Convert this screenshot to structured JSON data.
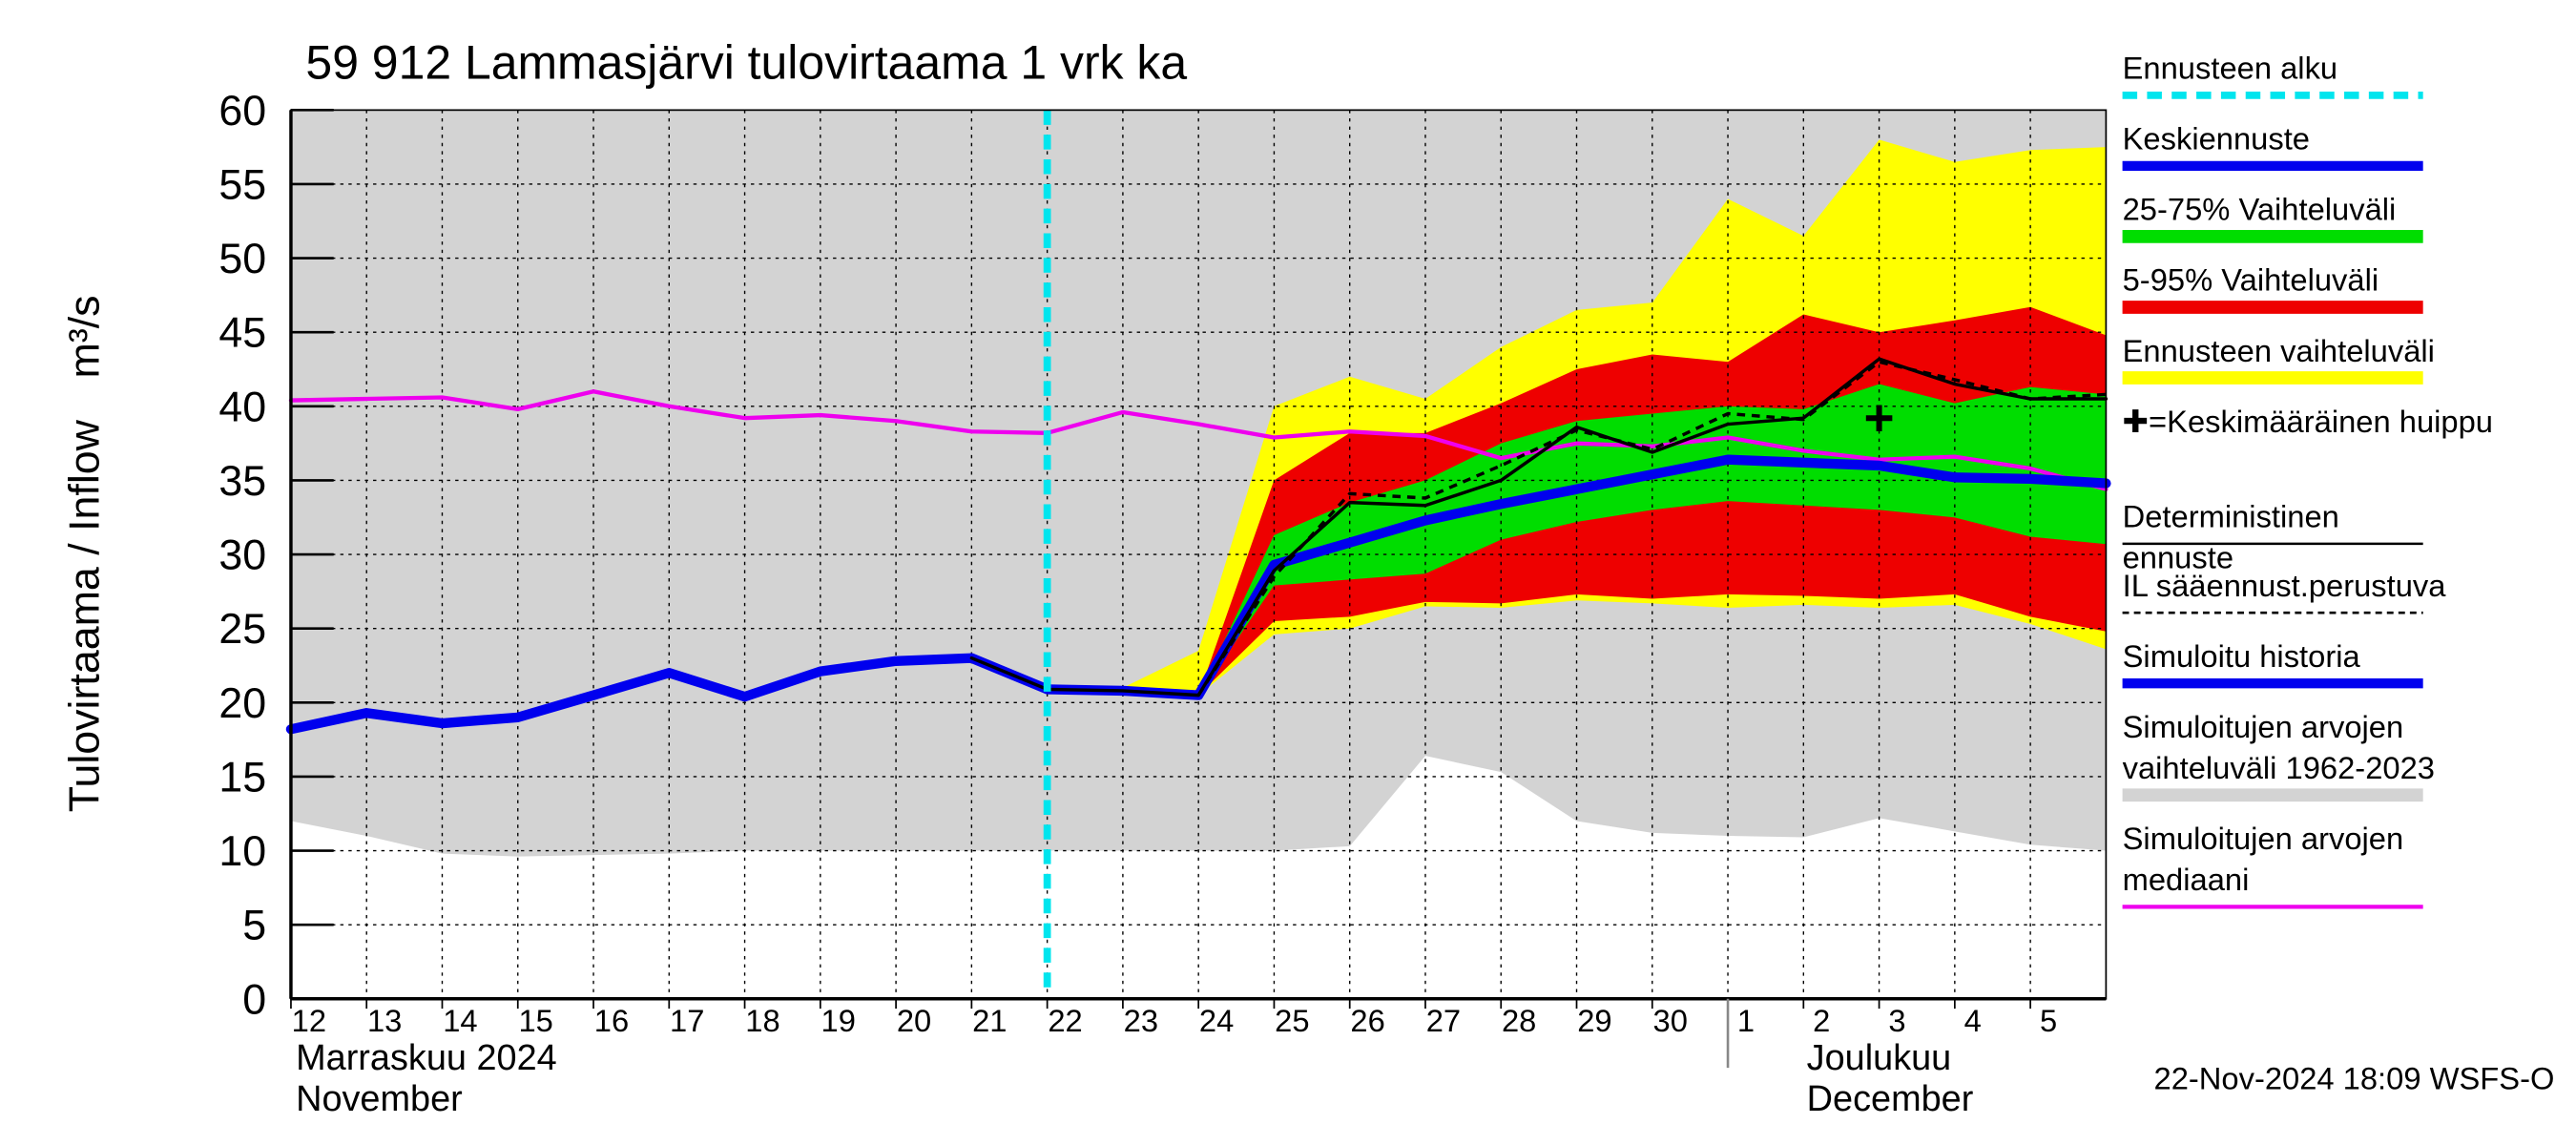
{
  "chart_data": {
    "type": "line",
    "title": "59 912 Lammasjärvi tulovirtaama 1 vrk ka",
    "y_label": "Tulovirtaama / Inflow",
    "y_unit": "m³/s",
    "x": [
      0,
      1,
      2,
      3,
      4,
      5,
      6,
      7,
      8,
      9,
      10,
      11,
      12,
      13,
      14,
      15,
      16,
      17,
      18,
      19,
      20,
      21,
      22,
      23,
      24
    ],
    "xlim": [
      0,
      24
    ],
    "xticks": [
      {
        "value": 0,
        "label": "12"
      },
      {
        "value": 1,
        "label": "13"
      },
      {
        "value": 2,
        "label": "14"
      },
      {
        "value": 3,
        "label": "15"
      },
      {
        "value": 4,
        "label": "16"
      },
      {
        "value": 5,
        "label": "17"
      },
      {
        "value": 6,
        "label": "18"
      },
      {
        "value": 7,
        "label": "19"
      },
      {
        "value": 8,
        "label": "20"
      },
      {
        "value": 9,
        "label": "21"
      },
      {
        "value": 10,
        "label": "22"
      },
      {
        "value": 11,
        "label": "23"
      },
      {
        "value": 12,
        "label": "24"
      },
      {
        "value": 13,
        "label": "25"
      },
      {
        "value": 14,
        "label": "26"
      },
      {
        "value": 15,
        "label": "27"
      },
      {
        "value": 16,
        "label": "28"
      },
      {
        "value": 17,
        "label": "29"
      },
      {
        "value": 18,
        "label": "30"
      },
      {
        "value": 19,
        "label": "1"
      },
      {
        "value": 20,
        "label": "2"
      },
      {
        "value": 21,
        "label": "3"
      },
      {
        "value": 22,
        "label": "4"
      },
      {
        "value": 23,
        "label": "5"
      }
    ],
    "ylim": [
      0,
      60
    ],
    "yticks": [
      0,
      5,
      10,
      15,
      20,
      25,
      30,
      35,
      40,
      45,
      50,
      55,
      60
    ],
    "grid": true,
    "months": [
      {
        "x": 0,
        "label": "Marraskuu 2024",
        "label_en": "November"
      },
      {
        "x": 19,
        "label": "Joulukuu",
        "label_en": "December"
      }
    ],
    "forecast_start": {
      "name": "Ennusteen alku",
      "x": 10,
      "color": "#00e5ee"
    },
    "peak": {
      "name": "=Keskimääräinen huippu",
      "x": 21,
      "y": 39.2,
      "color": "#000000"
    },
    "series": [
      {
        "name": "Keskiennuste",
        "color": "#0000ee",
        "style": "line",
        "width": 6,
        "values": [
          null,
          null,
          null,
          null,
          null,
          null,
          null,
          null,
          null,
          null,
          20.9,
          20.8,
          20.5,
          29.3,
          30.8,
          32.3,
          33.4,
          34.4,
          35.4,
          36.4,
          36.2,
          36,
          35.2,
          35.1,
          34.8
        ]
      },
      {
        "name": "25-75% Vaihteluväli",
        "color": "#00dd00",
        "style": "band",
        "upper": [
          null,
          null,
          null,
          null,
          null,
          null,
          null,
          null,
          null,
          null,
          21,
          20.8,
          20.5,
          31.3,
          33.5,
          35,
          37.5,
          39,
          39.5,
          40,
          39.8,
          41.5,
          40.2,
          41.3,
          40.8
        ],
        "lower": [
          null,
          null,
          null,
          null,
          null,
          null,
          null,
          null,
          null,
          null,
          21,
          20.8,
          20.5,
          27.9,
          28.3,
          28.7,
          31,
          32.2,
          33,
          33.6,
          33.3,
          33,
          32.5,
          31.2,
          30.7
        ]
      },
      {
        "name": "5-95% Vaihteluväli",
        "color": "#ee0000",
        "style": "band",
        "upper": [
          null,
          null,
          null,
          null,
          null,
          null,
          null,
          null,
          null,
          null,
          21,
          20.8,
          20.5,
          35,
          38.2,
          38.2,
          40.2,
          42.5,
          43.5,
          43,
          46.2,
          45,
          45.8,
          46.7,
          44.8
        ],
        "lower": [
          null,
          null,
          null,
          null,
          null,
          null,
          null,
          null,
          null,
          null,
          21,
          20.8,
          20.5,
          25.5,
          25.8,
          26.8,
          26.7,
          27.3,
          27,
          27.3,
          27.2,
          27,
          27.3,
          25.8,
          24.8
        ]
      },
      {
        "name": "Ennusteen vaihteluväli",
        "color": "#ffff00",
        "style": "band",
        "upper": [
          null,
          null,
          null,
          null,
          null,
          null,
          null,
          null,
          null,
          null,
          21,
          21,
          23.5,
          40,
          42,
          40.5,
          44,
          46.5,
          47,
          54,
          51.5,
          58,
          56.5,
          57.3,
          57.5
        ],
        "lower": [
          null,
          null,
          null,
          null,
          null,
          null,
          null,
          null,
          null,
          null,
          21,
          20.8,
          20.5,
          24.6,
          25,
          26.5,
          26.4,
          26.9,
          26.7,
          26.4,
          26.6,
          26.4,
          26.6,
          25.3,
          23.6
        ]
      },
      {
        "name": "Deterministinen ennuste",
        "color": "#000000",
        "style": "line",
        "width": 2,
        "values": [
          null,
          null,
          null,
          null,
          null,
          null,
          null,
          null,
          null,
          23,
          20.9,
          20.8,
          20.5,
          28.9,
          33.5,
          33.3,
          35,
          38.6,
          36.9,
          38.8,
          39.2,
          43.2,
          41.5,
          40.5,
          40.5
        ]
      },
      {
        "name": "IL sääennust.perustuva",
        "color": "#000000",
        "style": "dashed",
        "width": 2,
        "values": [
          null,
          null,
          null,
          null,
          null,
          null,
          null,
          null,
          null,
          null,
          null,
          null,
          20.5,
          28.5,
          34.1,
          33.8,
          36,
          38.4,
          37.1,
          39.5,
          39.1,
          43,
          41.8,
          40.5,
          40.8
        ]
      },
      {
        "name": "Simuloitu historia",
        "color": "#0000ee",
        "style": "line",
        "width": 6,
        "values": [
          18.2,
          19.3,
          18.6,
          19,
          20.5,
          22,
          20.4,
          22.1,
          22.8,
          23,
          20.9,
          null,
          null,
          null,
          null,
          null,
          null,
          null,
          null,
          null,
          null,
          null,
          null,
          null,
          null
        ]
      },
      {
        "name": "Simuloitujen arvojen vaihteluväli 1962-2023",
        "color": "#d3d3d3",
        "style": "band",
        "upper": [
          60,
          60,
          60,
          60,
          60,
          60,
          60,
          60,
          60,
          60,
          60,
          60,
          60,
          60,
          60,
          60,
          60,
          60,
          60,
          60,
          60,
          60,
          60,
          60,
          60
        ],
        "lower": [
          12,
          11,
          9.8,
          9.6,
          9.7,
          9.8,
          10,
          10,
          10,
          10,
          10,
          10,
          10,
          10,
          10.3,
          16.4,
          15.3,
          12,
          11.2,
          11,
          10.9,
          12.2,
          11.3,
          10.4,
          10
        ]
      },
      {
        "name": "Simuloitujen arvojen mediaani",
        "color": "#ee00ee",
        "style": "line",
        "width": 2.5,
        "values": [
          40.4,
          40.5,
          40.6,
          39.8,
          41,
          40,
          39.2,
          39.4,
          39,
          38.3,
          38.2,
          39.6,
          38.8,
          37.9,
          38.3,
          38,
          36.5,
          37.5,
          37.3,
          37.9,
          37,
          36.4,
          36.6,
          35.8,
          34.4
        ]
      }
    ],
    "footer": "22-Nov-2024 18:09 WSFS-O"
  }
}
